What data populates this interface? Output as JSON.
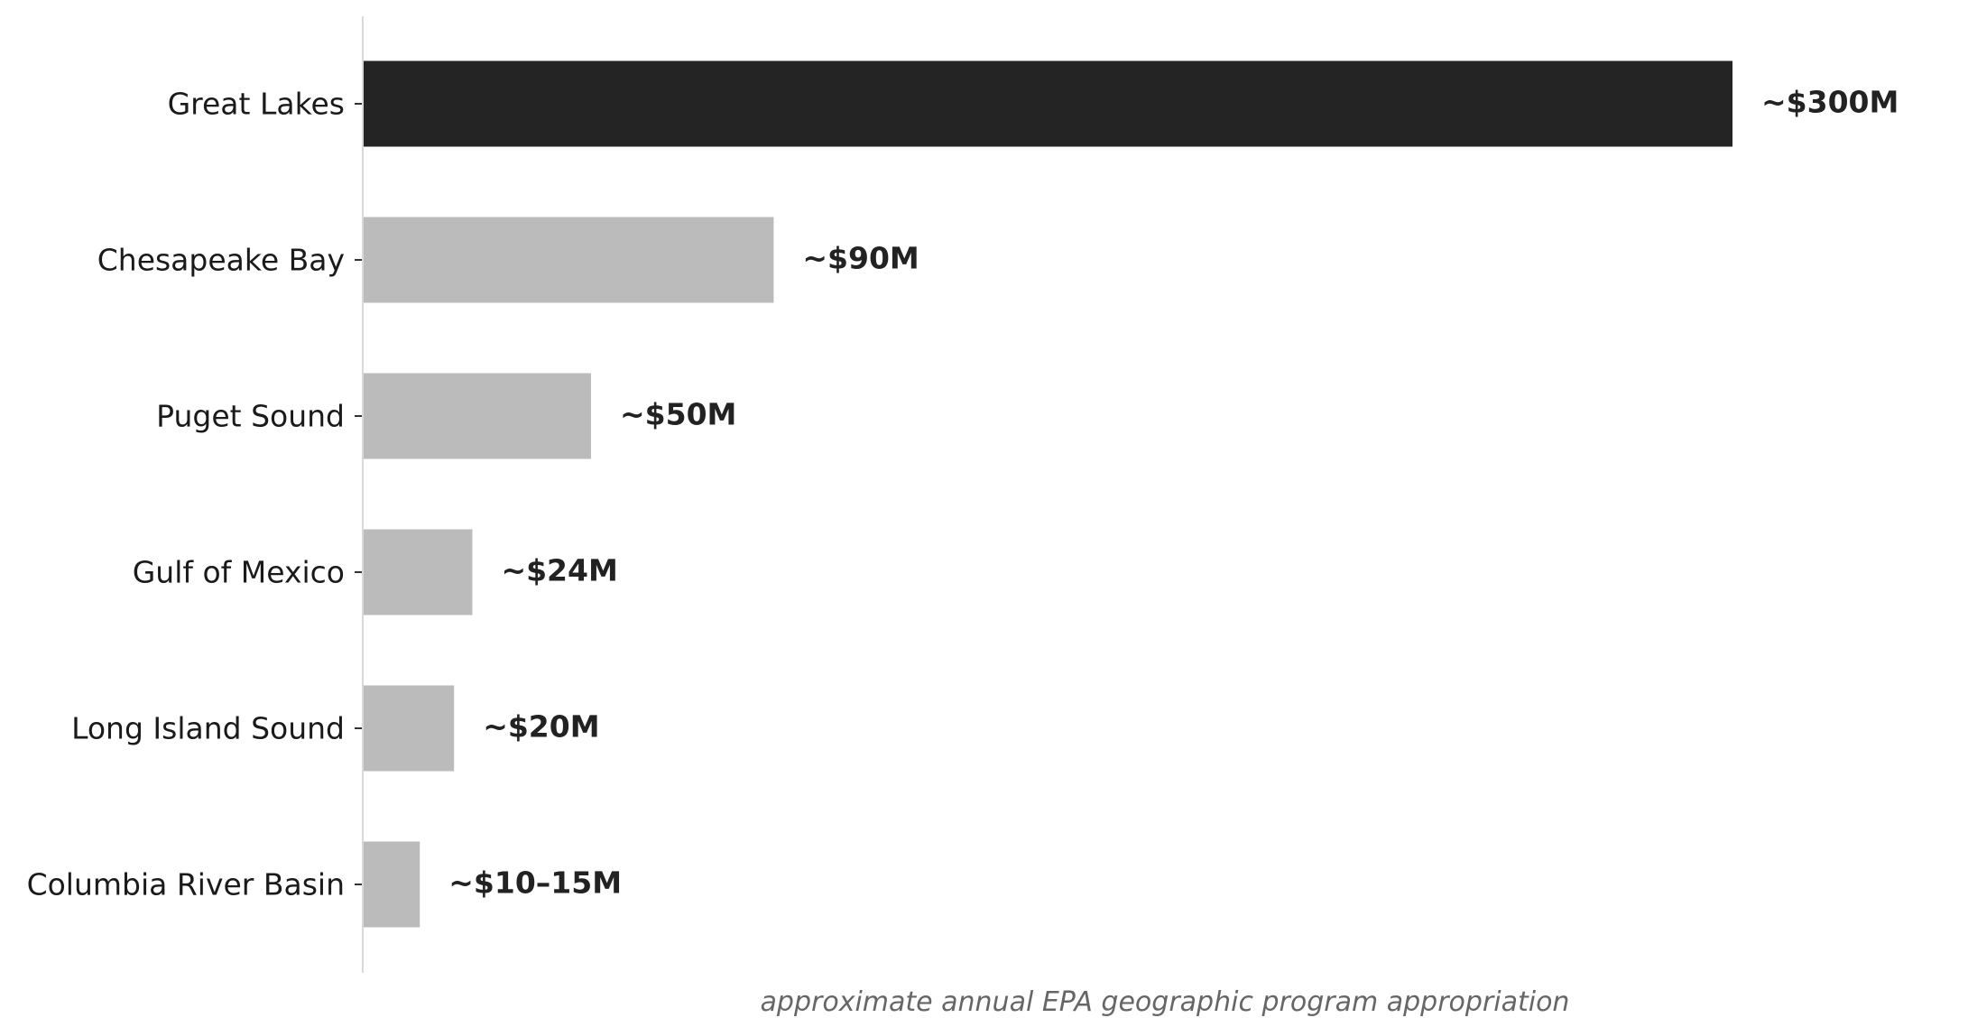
{
  "chart_data": {
    "type": "bar",
    "orientation": "horizontal",
    "categories": [
      "Great Lakes",
      "Chesapeake Bay",
      "Puget Sound",
      "Gulf of Mexico",
      "Long Island Sound",
      "Columbia River Basin"
    ],
    "values": [
      300,
      90,
      50,
      24,
      20,
      12.5
    ],
    "value_labels": [
      "~$300M",
      "~$90M",
      "~$50M",
      "~$24M",
      "~$20M",
      "~$10–15M"
    ],
    "xlabel": "approximate annual EPA geographic program appropriation",
    "ylabel": "",
    "xlim": [
      0,
      300
    ],
    "grid": false,
    "legend": false,
    "colors": {
      "highlight": "#242424",
      "default": "#bbbbbb",
      "axis": "#d9d9d9"
    },
    "highlight_index": 0
  }
}
